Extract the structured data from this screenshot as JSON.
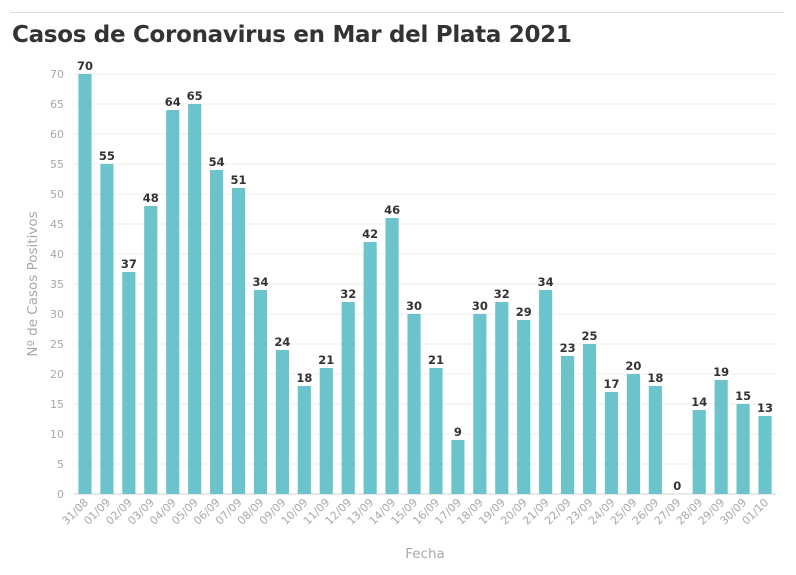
{
  "chart_data": {
    "type": "bar",
    "title": "Casos de Coronavirus en Mar del Plata 2021",
    "xlabel": "Fecha",
    "ylabel": "Nº de Casos Positivos",
    "ylim": [
      0,
      70
    ],
    "yticks": [
      0,
      5,
      10,
      15,
      20,
      25,
      30,
      35,
      40,
      45,
      50,
      55,
      60,
      65,
      70
    ],
    "grid": true,
    "categories": [
      "31/08",
      "01/09",
      "02/09",
      "03/09",
      "04/09",
      "05/09",
      "06/09",
      "07/09",
      "08/09",
      "09/09",
      "10/09",
      "11/09",
      "12/09",
      "13/09",
      "14/09",
      "15/09",
      "16/09",
      "17/09",
      "18/09",
      "19/09",
      "20/09",
      "21/09",
      "22/09",
      "23/09",
      "24/09",
      "25/09",
      "26/09",
      "27/09",
      "28/09",
      "29/09",
      "30/09",
      "01/10"
    ],
    "values": [
      70,
      55,
      37,
      48,
      64,
      65,
      54,
      51,
      34,
      24,
      18,
      21,
      32,
      42,
      46,
      30,
      21,
      9,
      30,
      32,
      29,
      34,
      23,
      25,
      17,
      20,
      18,
      0,
      14,
      19,
      15,
      13
    ],
    "color": "#6bc4cc"
  }
}
